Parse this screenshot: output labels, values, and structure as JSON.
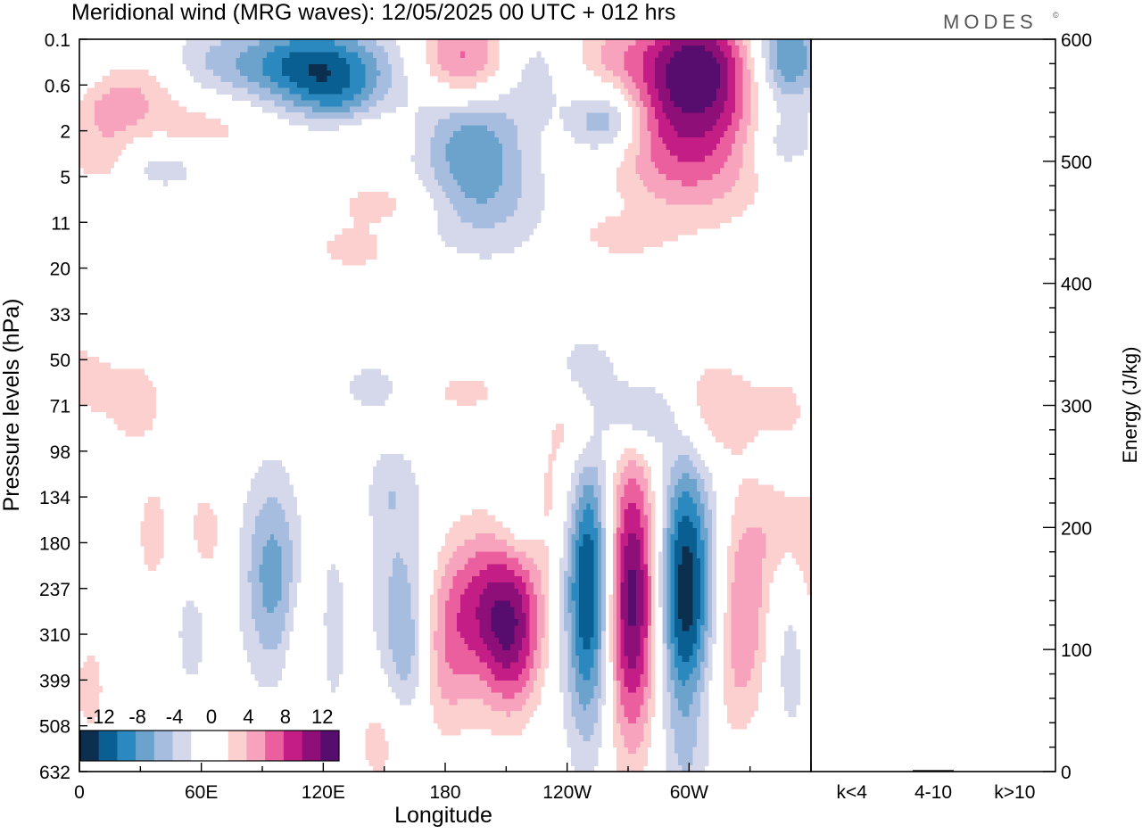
{
  "chart_data": {
    "type": "contour",
    "title": "Meridional wind (MRG waves):  12/05/2025  00 UTC  + 012 hrs",
    "brand": "MODES",
    "brand_mark": "©",
    "xlabel": "Longitude",
    "ylabel": "Pressure levels (hPa)",
    "y2label": "Energy (J/kg)",
    "x_tick_labels": [
      "0",
      "60E",
      "120E",
      "180",
      "120W",
      "60W"
    ],
    "x_tick_values_deg": [
      0,
      60,
      120,
      180,
      240,
      300
    ],
    "xlim_deg": [
      0,
      360
    ],
    "y_levels": [
      "0.1",
      "0.6",
      "2",
      "5",
      "11",
      "20",
      "33",
      "50",
      "71",
      "98",
      "134",
      "180",
      "237",
      "310",
      "399",
      "508",
      "632"
    ],
    "colorbar": {
      "labels": [
        "-12",
        "-8",
        "-4",
        "0",
        "4",
        "8",
        "12"
      ],
      "colors": [
        "#0d2f4f",
        "#0a5f92",
        "#2c89bf",
        "#6ba3cd",
        "#a7bde0",
        "#d4d8ea",
        "#ffffff",
        "#ffffff",
        "#fbd0cf",
        "#f7a3bd",
        "#ec5f9f",
        "#c41d86",
        "#8e0f77",
        "#560d6d"
      ]
    },
    "energy_axis": {
      "ylim": [
        0,
        600
      ],
      "ticks": [
        "0",
        "100",
        "200",
        "300",
        "400",
        "500",
        "600"
      ],
      "tick_values": [
        0,
        100,
        200,
        300,
        400,
        500,
        600
      ],
      "categories": [
        "k<4",
        "4-10",
        "k>10"
      ],
      "values": [
        0.3,
        1.2,
        0.3
      ]
    },
    "features": [
      {
        "sign": -1,
        "lon": 115,
        "lev": 0.6,
        "wlon": 22,
        "wlev": 0.7,
        "amp": 11
      },
      {
        "sign": 1,
        "lon": 188,
        "lev": 0.6,
        "wlon": 20,
        "wlev": 0.8,
        "amp": 9
      },
      {
        "sign": 1,
        "lon": 303,
        "lev": 0.5,
        "wlon": 20,
        "wlev": 0.9,
        "amp": 11
      },
      {
        "sign": -1,
        "lon": 348,
        "lev": 0.4,
        "wlon": 12,
        "wlev": 0.8,
        "amp": 9
      },
      {
        "sign": -1,
        "lon": 373,
        "lev": 0.4,
        "wlon": 6,
        "wlev": 0.6,
        "amp": 5
      },
      {
        "sign": 1,
        "lon": 30,
        "lev": 1.0,
        "wlon": 15,
        "wlev": 0.5,
        "amp": 3
      },
      {
        "sign": -1,
        "lon": 70,
        "lev": 0.5,
        "wlon": 20,
        "wlev": 0.6,
        "amp": 4
      },
      {
        "sign": -1,
        "lon": 160,
        "lev": 0.5,
        "wlon": 18,
        "wlev": 0.6,
        "amp": 3
      },
      {
        "sign": -1,
        "lon": 220,
        "lev": 0.6,
        "wlon": 15,
        "wlev": 0.8,
        "amp": 4
      },
      {
        "sign": 1,
        "lon": 260,
        "lev": 0.3,
        "wlon": 15,
        "wlev": 0.5,
        "amp": 3
      },
      {
        "sign": 1,
        "lon": 60,
        "lev": 1.9,
        "wlon": 25,
        "wlev": 0.5,
        "amp": 3
      },
      {
        "sign": 1,
        "lon": 15,
        "lev": 1.6,
        "wlon": 12,
        "wlev": 0.4,
        "amp": 4
      },
      {
        "sign": -1,
        "lon": 130,
        "lev": 1.5,
        "wlon": 15,
        "wlev": 0.6,
        "amp": 4
      },
      {
        "sign": -1,
        "lon": 188,
        "lev": 1.6,
        "wlon": 20,
        "wlev": 0.7,
        "amp": 6
      },
      {
        "sign": -1,
        "lon": 259,
        "lev": 1.8,
        "wlon": 12,
        "wlev": 0.5,
        "amp": 7
      },
      {
        "sign": 1,
        "lon": 300,
        "lev": 2.2,
        "wlon": 26,
        "wlev": 1.2,
        "amp": 8
      },
      {
        "sign": -1,
        "lon": 345,
        "lev": 2.3,
        "wlon": 12,
        "wlev": 0.5,
        "amp": 4
      },
      {
        "sign": 1,
        "lon": 10,
        "lev": 2.6,
        "wlon": 10,
        "wlev": 0.4,
        "amp": 4
      },
      {
        "sign": -1,
        "lon": 42,
        "lev": 2.8,
        "wlon": 18,
        "wlev": 0.4,
        "amp": 3
      },
      {
        "sign": -1,
        "lon": 195,
        "lev": 2.8,
        "wlon": 18,
        "wlev": 0.8,
        "amp": 5
      },
      {
        "sign": 1,
        "lon": 138,
        "lev": 2.0,
        "wlon": 18,
        "wlev": 0.4,
        "amp": 3
      },
      {
        "sign": 1,
        "lon": 150,
        "lev": 3.6,
        "wlon": 20,
        "wlev": 0.4,
        "amp": 3
      },
      {
        "sign": -1,
        "lon": 200,
        "lev": 3.8,
        "wlon": 25,
        "wlev": 0.9,
        "amp": 3
      },
      {
        "sign": 1,
        "lon": 135,
        "lev": 4.6,
        "wlon": 14,
        "wlev": 0.35,
        "amp": 3
      },
      {
        "sign": 1,
        "lon": 265,
        "lev": 4.3,
        "wlon": 15,
        "wlev": 0.3,
        "amp": 3
      },
      {
        "sign": -1,
        "lon": 25,
        "lev": 6.5,
        "wlon": 10,
        "wlev": 0.4,
        "amp": 2.5
      },
      {
        "sign": 1,
        "lon": 0,
        "lev": 7.4,
        "wlon": 14,
        "wlev": 0.7,
        "amp": 3
      },
      {
        "sign": 1,
        "lon": 28,
        "lev": 7.9,
        "wlon": 10,
        "wlev": 0.8,
        "amp": 3
      },
      {
        "sign": -1,
        "lon": 143,
        "lev": 7.6,
        "wlon": 10,
        "wlev": 0.4,
        "amp": 3
      },
      {
        "sign": -1,
        "lon": 248,
        "lev": 7.3,
        "wlon": 14,
        "wlev": 0.6,
        "amp": 3
      },
      {
        "sign": -1,
        "lon": 277,
        "lev": 8.2,
        "wlon": 12,
        "wlev": 0.6,
        "amp": 7
      },
      {
        "sign": 1,
        "lon": 304,
        "lev": 8.1,
        "wlon": 18,
        "wlev": 0.9,
        "amp": 5
      },
      {
        "sign": 1,
        "lon": 243,
        "lev": 8.4,
        "wlon": 10,
        "wlev": 0.8,
        "amp": 4
      },
      {
        "sign": 1,
        "lon": 350,
        "lev": 8.0,
        "wlon": 12,
        "wlev": 0.5,
        "amp": 3
      },
      {
        "sign": -1,
        "lon": 365,
        "lev": 7.9,
        "wlon": 8,
        "wlev": 0.4,
        "amp": 3
      },
      {
        "sign": 1,
        "lon": 190,
        "lev": 7.7,
        "wlon": 12,
        "wlev": 0.3,
        "amp": 3
      },
      {
        "sign": 1,
        "lon": 132,
        "lev": 9.8,
        "wlon": 12,
        "wlev": 0.6,
        "amp": 3
      },
      {
        "sign": -1,
        "lon": 147,
        "lev": 9.8,
        "wlon": 10,
        "wlev": 0.6,
        "amp": 3
      },
      {
        "sign": -1,
        "lon": 95,
        "lev": 11.7,
        "wlon": 11,
        "wlev": 1.6,
        "amp": 7
      },
      {
        "sign": 1,
        "lon": 62,
        "lev": 10.8,
        "wlon": 7,
        "wlev": 0.8,
        "amp": 3
      },
      {
        "sign": 1,
        "lon": 36,
        "lev": 10.8,
        "wlon": 6,
        "wlev": 0.9,
        "amp": 3
      },
      {
        "sign": -1,
        "lon": 158,
        "lev": 11.7,
        "wlon": 12,
        "wlev": 1.8,
        "amp": 4
      },
      {
        "sign": -1,
        "lon": 162,
        "lev": 13.5,
        "wlon": 8,
        "wlev": 1.2,
        "amp": 5
      },
      {
        "sign": 1,
        "lon": 200,
        "lev": 12.3,
        "wlon": 20,
        "wlev": 1.2,
        "amp": 8
      },
      {
        "sign": 1,
        "lon": 212,
        "lev": 13.2,
        "wlon": 10,
        "wlev": 1.2,
        "amp": 7
      },
      {
        "sign": 1,
        "lon": 178,
        "lev": 13.8,
        "wlon": 12,
        "wlev": 1.2,
        "amp": 4
      },
      {
        "sign": -1,
        "lon": 251,
        "lev": 12.0,
        "wlon": 9,
        "wlev": 2.2,
        "amp": 14
      },
      {
        "sign": 1,
        "lon": 271,
        "lev": 12.2,
        "wlon": 10,
        "wlev": 2.2,
        "amp": 14
      },
      {
        "sign": -1,
        "lon": 298,
        "lev": 12.3,
        "wlon": 10,
        "wlev": 2.5,
        "amp": 14
      },
      {
        "sign": 1,
        "lon": 327,
        "lev": 12.4,
        "wlon": 9,
        "wlev": 1.6,
        "amp": 6
      },
      {
        "sign": -1,
        "lon": 350,
        "lev": 13.5,
        "wlon": 8,
        "wlev": 1.5,
        "amp": 3
      },
      {
        "sign": 1,
        "lon": 305,
        "lev": 14.3,
        "wlon": 14,
        "wlev": 1.0,
        "amp": 3
      },
      {
        "sign": 1,
        "lon": 345,
        "lev": 10.7,
        "wlon": 10,
        "wlev": 0.8,
        "amp": 3
      },
      {
        "sign": 1,
        "lon": 5,
        "lev": 14.2,
        "wlon": 6,
        "wlev": 0.8,
        "amp": 3
      },
      {
        "sign": -1,
        "lon": 55,
        "lev": 13.0,
        "wlon": 6,
        "wlev": 1.0,
        "amp": 3
      },
      {
        "sign": -1,
        "lon": 125,
        "lev": 13.0,
        "wlon": 5,
        "wlev": 1.5,
        "amp": 3
      },
      {
        "sign": 1,
        "lon": 110,
        "lev": 13.5,
        "wlon": 6,
        "wlev": 1.5,
        "amp": 3
      },
      {
        "sign": 1,
        "lon": 148,
        "lev": 15.3,
        "wlon": 10,
        "wlev": 0.9,
        "amp": 3
      },
      {
        "sign": 1,
        "lon": 233,
        "lev": 10.2,
        "wlon": 9,
        "wlev": 0.8,
        "amp": 3
      },
      {
        "sign": 1,
        "lon": 360,
        "lev": 11.6,
        "wlon": 6,
        "wlev": 1.2,
        "amp": 3
      },
      {
        "sign": -1,
        "lon": 218,
        "lev": 10.5,
        "wlon": 8,
        "wlev": 0.6,
        "amp": 3
      }
    ]
  }
}
